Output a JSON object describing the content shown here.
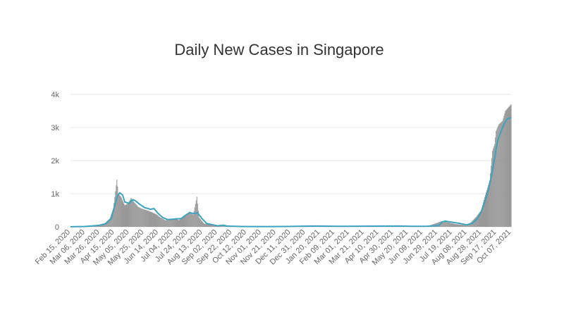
{
  "chart_data": {
    "type": "bar",
    "title": "Daily New Cases in Singapore",
    "xlabel": "",
    "ylabel": "",
    "x_range": [
      "2020-02-15",
      "2021-10-24"
    ],
    "ylim": [
      0,
      4000
    ],
    "y_ticks": [
      0,
      1000,
      2000,
      3000,
      4000
    ],
    "y_tick_labels": [
      "0",
      "1k",
      "2k",
      "3k",
      "4k"
    ],
    "x_tick_labels": [
      "Feb 15, 2020",
      "Mar 06, 2020",
      "Mar 26, 2020",
      "Apr 15, 2020",
      "May 05, 2020",
      "May 25, 2020",
      "Jun 14, 2020",
      "Jul 04, 2020",
      "Jul 24, 2020",
      "Aug 13, 2020",
      "Sep 02, 2020",
      "Sep 22, 2020",
      "Oct 12, 2020",
      "Nov 01, 2020",
      "Nov 21, 2020",
      "Dec 11, 2020",
      "Dec 31, 2020",
      "Jan 20, 2021",
      "Feb 09, 2021",
      "Mar 01, 2021",
      "Mar 21, 2021",
      "Apr 10, 2021",
      "Apr 30, 2021",
      "May 20, 2021",
      "Jun 09, 2021",
      "Jun 29, 2021",
      "Jul 19, 2021",
      "Aug 08, 2021",
      "Aug 28, 2021",
      "Sep 17, 2021",
      "Oct 07, 2021"
    ],
    "grid": true,
    "legend": "none",
    "series": [
      {
        "type": "bar",
        "color": "#999999",
        "points": [
          [
            "2020-02-15",
            2
          ],
          [
            "2020-03-06",
            10
          ],
          [
            "2020-03-26",
            50
          ],
          [
            "2020-04-01",
            70
          ],
          [
            "2020-04-10",
            250
          ],
          [
            "2020-04-15",
            550
          ],
          [
            "2020-04-20",
            1426
          ],
          [
            "2020-04-22",
            1000
          ],
          [
            "2020-04-26",
            900
          ],
          [
            "2020-05-01",
            650
          ],
          [
            "2020-05-05",
            700
          ],
          [
            "2020-05-10",
            870
          ],
          [
            "2020-05-14",
            750
          ],
          [
            "2020-05-20",
            600
          ],
          [
            "2020-05-25",
            550
          ],
          [
            "2020-06-01",
            500
          ],
          [
            "2020-06-07",
            450
          ],
          [
            "2020-06-14",
            380
          ],
          [
            "2020-06-20",
            280
          ],
          [
            "2020-06-27",
            200
          ],
          [
            "2020-07-04",
            220
          ],
          [
            "2020-07-10",
            250
          ],
          [
            "2020-07-16",
            200
          ],
          [
            "2020-07-24",
            350
          ],
          [
            "2020-07-31",
            460
          ],
          [
            "2020-08-05",
            370
          ],
          [
            "2020-08-10",
            908
          ],
          [
            "2020-08-13",
            280
          ],
          [
            "2020-08-20",
            100
          ],
          [
            "2020-09-02",
            60
          ],
          [
            "2020-09-10",
            40
          ],
          [
            "2020-09-22",
            20
          ],
          [
            "2020-10-12",
            10
          ],
          [
            "2020-11-01",
            8
          ],
          [
            "2020-12-11",
            10
          ],
          [
            "2021-01-20",
            25
          ],
          [
            "2021-03-01",
            15
          ],
          [
            "2021-04-10",
            20
          ],
          [
            "2021-05-20",
            25
          ],
          [
            "2021-06-09",
            15
          ],
          [
            "2021-06-29",
            20
          ],
          [
            "2021-07-19",
            170
          ],
          [
            "2021-07-24",
            150
          ],
          [
            "2021-08-08",
            80
          ],
          [
            "2021-08-20",
            60
          ],
          [
            "2021-08-28",
            120
          ],
          [
            "2021-09-05",
            300
          ],
          [
            "2021-09-12",
            500
          ],
          [
            "2021-09-17",
            900
          ],
          [
            "2021-09-24",
            1400
          ],
          [
            "2021-09-28",
            2300
          ],
          [
            "2021-10-01",
            2500
          ],
          [
            "2021-10-03",
            2900
          ],
          [
            "2021-10-07",
            3100
          ],
          [
            "2021-10-12",
            3200
          ],
          [
            "2021-10-16",
            3500
          ],
          [
            "2021-10-20",
            3600
          ],
          [
            "2021-10-24",
            3700
          ]
        ]
      },
      {
        "type": "line",
        "color": "#3ba3c0",
        "points": [
          [
            "2020-02-15",
            2
          ],
          [
            "2020-03-06",
            10
          ],
          [
            "2020-03-26",
            45
          ],
          [
            "2020-04-05",
            100
          ],
          [
            "2020-04-12",
            250
          ],
          [
            "2020-04-17",
            650
          ],
          [
            "2020-04-21",
            950
          ],
          [
            "2020-04-24",
            1030
          ],
          [
            "2020-04-28",
            960
          ],
          [
            "2020-05-01",
            750
          ],
          [
            "2020-05-07",
            710
          ],
          [
            "2020-05-12",
            820
          ],
          [
            "2020-05-15",
            800
          ],
          [
            "2020-05-22",
            680
          ],
          [
            "2020-05-29",
            580
          ],
          [
            "2020-06-06",
            530
          ],
          [
            "2020-06-11",
            550
          ],
          [
            "2020-06-16",
            420
          ],
          [
            "2020-06-23",
            280
          ],
          [
            "2020-06-30",
            220
          ],
          [
            "2020-07-06",
            230
          ],
          [
            "2020-07-12",
            240
          ],
          [
            "2020-07-19",
            250
          ],
          [
            "2020-07-25",
            350
          ],
          [
            "2020-07-31",
            430
          ],
          [
            "2020-08-06",
            400
          ],
          [
            "2020-08-11",
            420
          ],
          [
            "2020-08-17",
            250
          ],
          [
            "2020-08-24",
            100
          ],
          [
            "2020-09-02",
            60
          ],
          [
            "2020-09-08",
            30
          ],
          [
            "2020-09-16",
            50
          ],
          [
            "2020-09-22",
            20
          ],
          [
            "2020-10-12",
            10
          ],
          [
            "2020-11-01",
            8
          ],
          [
            "2020-12-11",
            10
          ],
          [
            "2021-01-20",
            25
          ],
          [
            "2021-03-01",
            15
          ],
          [
            "2021-04-10",
            20
          ],
          [
            "2021-05-20",
            25
          ],
          [
            "2021-06-09",
            15
          ],
          [
            "2021-06-29",
            18
          ],
          [
            "2021-07-15",
            40
          ],
          [
            "2021-07-19",
            150
          ],
          [
            "2021-07-24",
            170
          ],
          [
            "2021-08-02",
            140
          ],
          [
            "2021-08-14",
            100
          ],
          [
            "2021-08-23",
            60
          ],
          [
            "2021-08-31",
            110
          ],
          [
            "2021-09-07",
            250
          ],
          [
            "2021-09-12",
            450
          ],
          [
            "2021-09-17",
            750
          ],
          [
            "2021-09-22",
            1100
          ],
          [
            "2021-09-27",
            1600
          ],
          [
            "2021-10-01",
            2100
          ],
          [
            "2021-10-05",
            2600
          ],
          [
            "2021-10-10",
            2900
          ],
          [
            "2021-10-14",
            3100
          ],
          [
            "2021-10-18",
            3250
          ],
          [
            "2021-10-24",
            3300
          ]
        ]
      }
    ]
  }
}
